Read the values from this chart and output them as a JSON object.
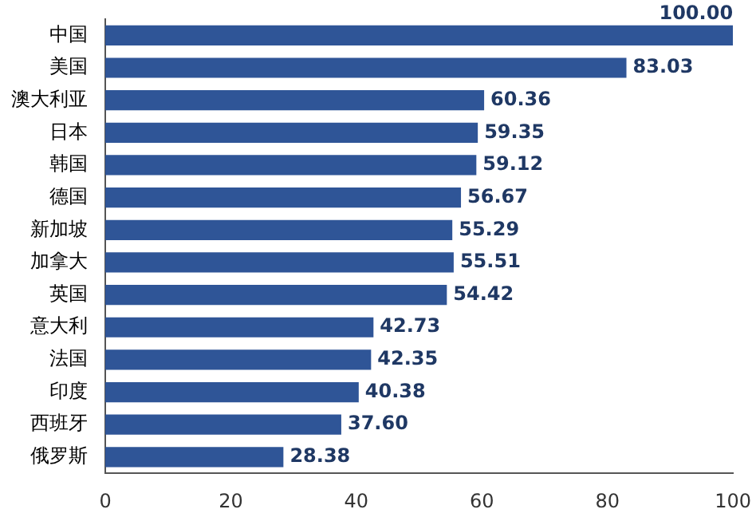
{
  "chart_data": {
    "type": "bar",
    "orientation": "horizontal",
    "categories": [
      "中国",
      "美国",
      "澳大利亚",
      "日本",
      "韩国",
      "德国",
      "新加坡",
      "加拿大",
      "英国",
      "意大利",
      "法国",
      "印度",
      "西班牙",
      "俄罗斯"
    ],
    "values": [
      100.0,
      83.03,
      60.36,
      59.35,
      59.12,
      56.67,
      55.29,
      55.51,
      54.42,
      42.73,
      42.35,
      40.38,
      37.6,
      28.38
    ],
    "value_labels": [
      "100.00",
      "83.03",
      "60.36",
      "59.35",
      "59.12",
      "56.67",
      "55.29",
      "55.51",
      "54.42",
      "42.73",
      "42.35",
      "40.38",
      "37.60",
      "28.38"
    ],
    "color": "#2f5597",
    "xlim": [
      0,
      100
    ],
    "xticks": [
      0,
      20,
      40,
      60,
      80,
      100
    ],
    "grid": false,
    "legend": false
  }
}
